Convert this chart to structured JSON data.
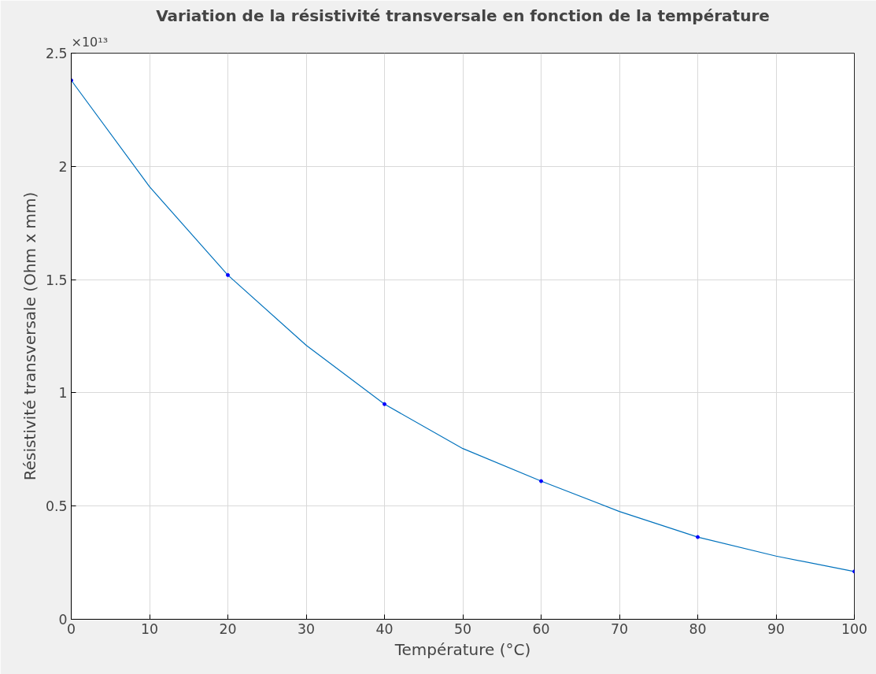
{
  "chart_data": {
    "type": "line",
    "title": "Variation de la résistivité transversale en fonction de la température",
    "xlabel": "Température (°C)",
    "ylabel": "Résistivité transversale (Ohm x mm)",
    "annotations": [
      "×10¹³"
    ],
    "xlim": [
      0,
      100
    ],
    "xticks": [
      0,
      10,
      20,
      30,
      40,
      50,
      60,
      70,
      80,
      90,
      100
    ],
    "ylim": [
      0,
      2.5
    ],
    "yticks": [
      0,
      0.5,
      1,
      1.5,
      2,
      2.5
    ],
    "grid": true,
    "series": [
      {
        "color": "#0072bd",
        "marker": "none",
        "x": [
          0,
          10,
          20,
          30,
          40,
          50,
          60,
          70,
          80,
          90,
          100
        ],
        "values": [
          2.38,
          1.91,
          1.52,
          1.21,
          0.95,
          0.754,
          0.61,
          0.476,
          0.363,
          0.279,
          0.211
        ]
      },
      {
        "type": "scatter",
        "color": "#0000ff",
        "marker": "circle",
        "x": [
          0,
          20,
          40,
          60,
          80,
          100
        ],
        "values": [
          2.38,
          1.52,
          0.95,
          0.61,
          0.363,
          0.211
        ]
      }
    ]
  }
}
